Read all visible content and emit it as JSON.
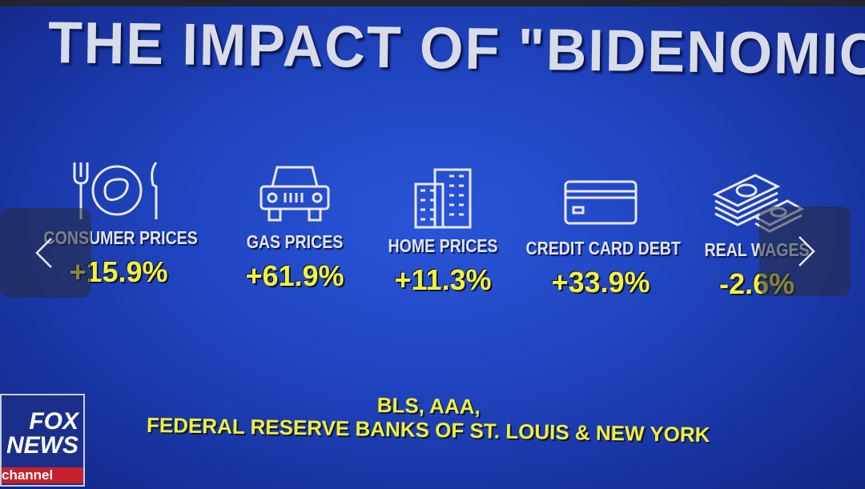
{
  "title": "THE IMPACT OF \"BIDENOMICS\"",
  "items": [
    {
      "label": "CONSUMER PRICES",
      "value": "+15.9%",
      "icon": "utensils-plate-icon"
    },
    {
      "label": "GAS PRICES",
      "value": "+61.9%",
      "icon": "car-icon"
    },
    {
      "label": "HOME PRICES",
      "value": "+11.3%",
      "icon": "buildings-icon"
    },
    {
      "label": "CREDIT CARD DEBT",
      "value": "+33.9%",
      "icon": "credit-card-icon"
    },
    {
      "label": "REAL WAGES",
      "value": "-2.6%",
      "icon": "money-stack-icon"
    }
  ],
  "source": {
    "line1": "BLS, AAA,",
    "line2": "FEDERAL RESERVE BANKS OF ST. LOUIS & NEW YORK"
  },
  "logo": {
    "line1": "FOX",
    "line2": "NEWS",
    "line3": "channel"
  },
  "nav": {
    "prev": "previous-arrow",
    "next": "next-arrow"
  },
  "colors": {
    "background": "#1f43bd",
    "value": "#f2f23a",
    "label": "#dfe4f3"
  }
}
